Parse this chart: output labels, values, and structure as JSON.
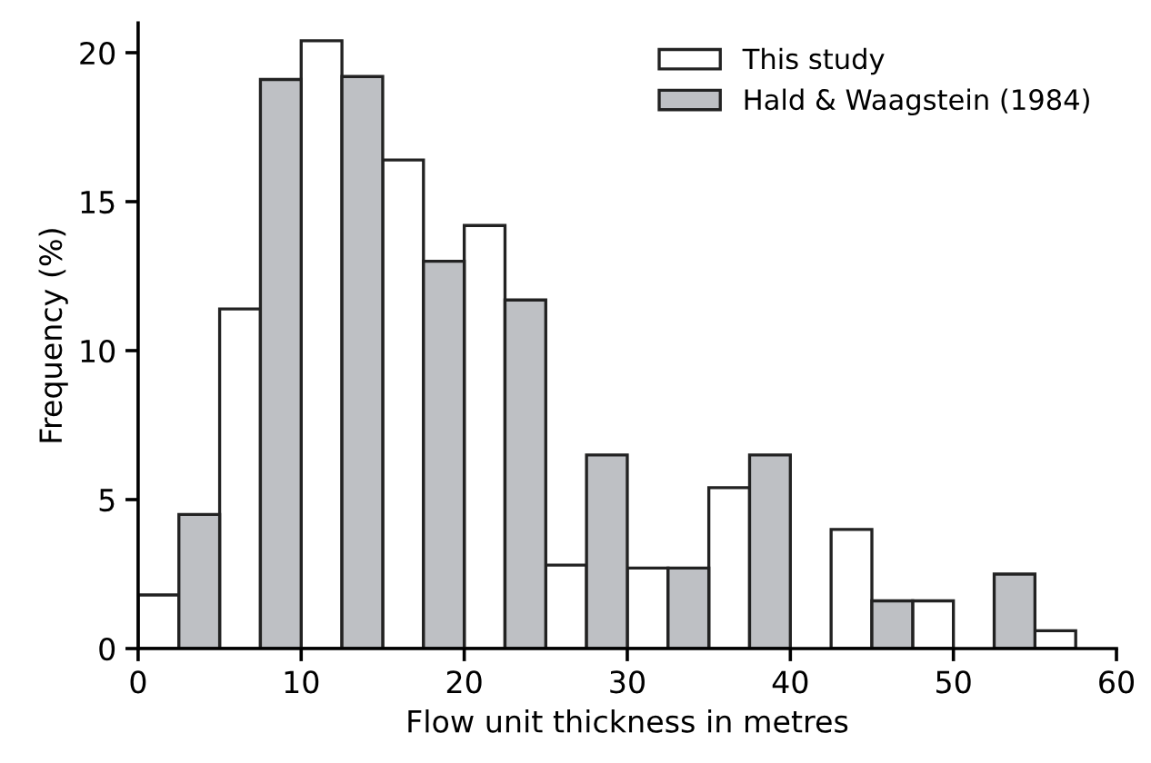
{
  "chart_data": {
    "type": "bar",
    "xlabel": "Flow unit thickness in metres",
    "ylabel": "Frequency (%)",
    "series": [
      {
        "name": "This study",
        "color": "#ffffff",
        "x": [
          1.25,
          6.25,
          11.25,
          16.25,
          21.25,
          26.25,
          31.25,
          36.25,
          43.75,
          48.75,
          56.25
        ],
        "values": [
          1.8,
          11.4,
          20.4,
          16.4,
          14.2,
          2.8,
          2.7,
          5.4,
          4.0,
          1.6,
          0.6
        ]
      },
      {
        "name": "Hald & Waagstein (1984)",
        "color": "#bec0c4",
        "x": [
          3.75,
          8.75,
          13.75,
          18.75,
          23.75,
          28.75,
          33.75,
          38.75,
          46.25,
          53.75
        ],
        "values": [
          4.5,
          19.1,
          19.2,
          13.0,
          11.7,
          6.5,
          2.7,
          6.5,
          1.6,
          2.5
        ]
      }
    ],
    "xlim": [
      0,
      60
    ],
    "xticks": [
      0,
      10,
      20,
      30,
      40,
      50,
      60
    ],
    "ylim": [
      0,
      21
    ],
    "yticks": [
      0,
      5,
      10,
      15,
      20
    ],
    "grid": false,
    "legend": "top right"
  }
}
